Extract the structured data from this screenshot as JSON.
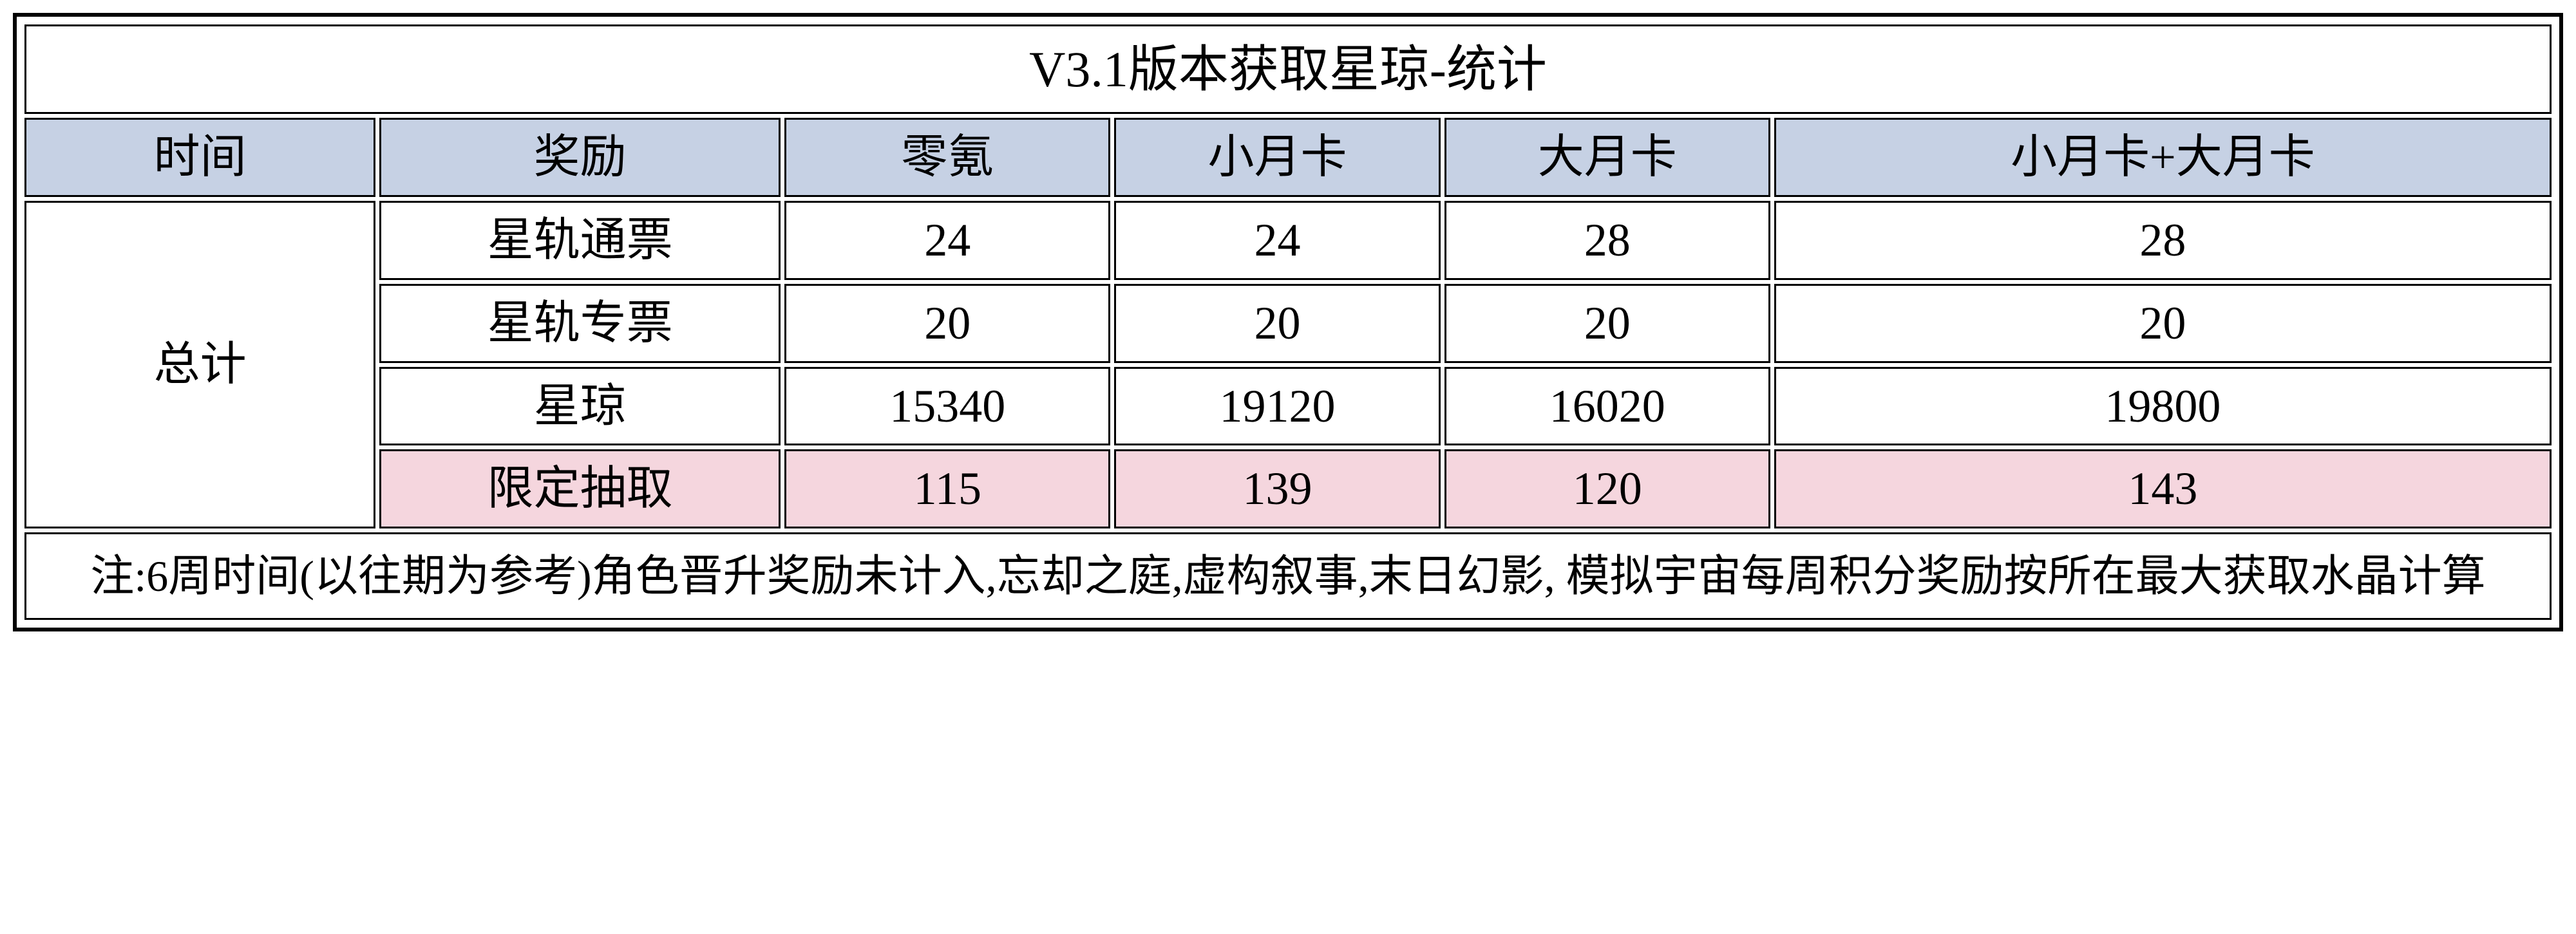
{
  "title": "V3.1版本获取星琼-统计",
  "headers": {
    "time": "时间",
    "reward": "奖励",
    "col_a": "零氪",
    "col_b": "小月卡",
    "col_c": "大月卡",
    "col_d": "小月卡+大月卡"
  },
  "row_group_label": "总计",
  "rows": [
    {
      "reward": "星轨通票",
      "a": "24",
      "b": "24",
      "c": "28",
      "d": "28",
      "highlight": false
    },
    {
      "reward": "星轨专票",
      "a": "20",
      "b": "20",
      "c": "20",
      "d": "20",
      "highlight": false
    },
    {
      "reward": "星琼",
      "a": "15340",
      "b": "19120",
      "c": "16020",
      "d": "19800",
      "highlight": false
    },
    {
      "reward": "限定抽取",
      "a": "115",
      "b": "139",
      "c": "120",
      "d": "143",
      "highlight": true
    }
  ],
  "note": "注:6周时间(以往期为参考)角色晋升奖励未计入,忘却之庭,虚构叙事,末日幻影, 模拟宇宙每周积分奖励按所在最大获取水晶计算",
  "colors": {
    "header_bg": "#c6d1e4",
    "highlight_bg": "#f5d6de",
    "border": "#000000",
    "background": "#ffffff",
    "text": "#000000"
  },
  "font": {
    "family": "SimSun",
    "title_size_pt": 58,
    "cell_size_pt": 54,
    "note_size_pt": 51
  }
}
